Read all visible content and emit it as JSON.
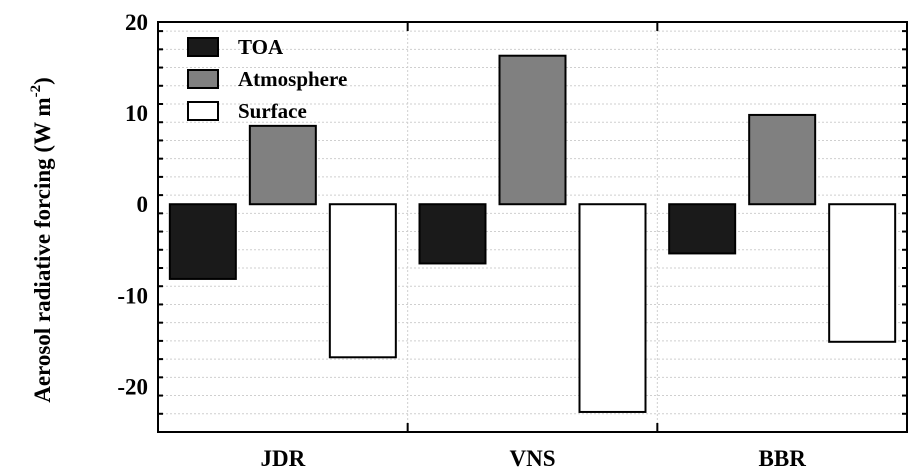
{
  "chart_data": {
    "type": "bar",
    "ylabel": "Aerosol radiative forcing (W m",
    "ylabel_sup": "-2",
    "ylabel_close": ")",
    "categories": [
      "JDR",
      "VNS",
      "BBR"
    ],
    "ylim": [
      -25,
      20
    ],
    "yticks": [
      20,
      10,
      0,
      -10,
      -20
    ],
    "ytick_labels": [
      "20",
      "10",
      "0",
      "-10",
      "-20"
    ],
    "grid": true,
    "legend_position": "top-left",
    "series": [
      {
        "name": "TOA",
        "color": "#1a1a1a",
        "values": [
          -8.2,
          -6.5,
          -5.4
        ]
      },
      {
        "name": "Atmosphere",
        "color": "#808080",
        "values": [
          8.6,
          16.3,
          9.8
        ]
      },
      {
        "name": "Surface",
        "color": "#ffffff",
        "values": [
          -16.8,
          -22.8,
          -15.1
        ]
      }
    ]
  }
}
